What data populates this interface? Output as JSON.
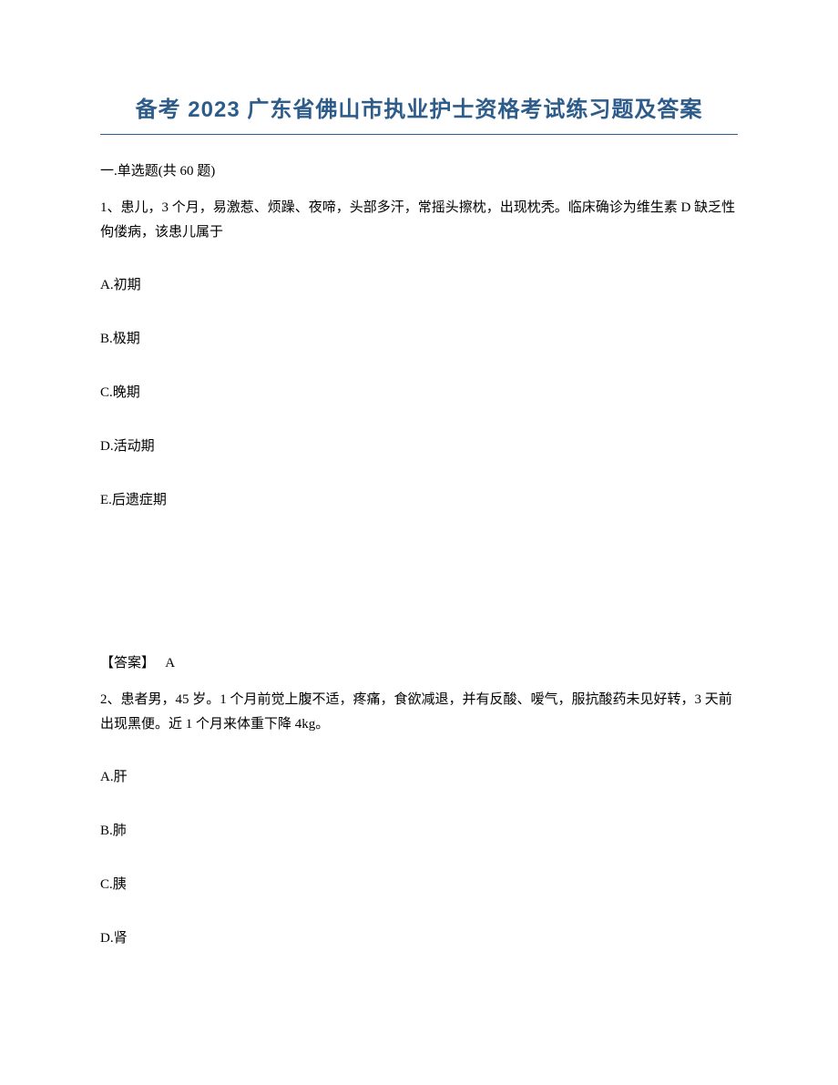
{
  "document": {
    "title": "备考 2023 广东省佛山市执业护士资格考试练习题及答案",
    "title_color": "#2e5c8a",
    "title_fontsize": 24,
    "body_fontsize": 15,
    "body_color": "#000000",
    "background_color": "#ffffff",
    "section_header": "一.单选题(共 60 题)",
    "questions": [
      {
        "number": "1",
        "text": "1、患儿，3 个月，易激惹、烦躁、夜啼，头部多汗，常摇头擦枕，出现枕秃。临床确诊为维生素 D 缺乏性佝偻病，该患儿属于",
        "options": [
          "A.初期",
          "B.极期",
          "C.晚期",
          "D.活动期",
          "E.后遗症期"
        ],
        "answer_label": "【答案】",
        "answer_value": "A"
      },
      {
        "number": "2",
        "text": "2、患者男，45 岁。1 个月前觉上腹不适，疼痛，食欲减退，并有反酸、嗳气，服抗酸药未见好转，3 天前出现黑便。近 1 个月来体重下降 4kg。",
        "options": [
          "A.肝",
          "B.肺",
          "C.胰",
          "D.肾"
        ]
      }
    ]
  }
}
